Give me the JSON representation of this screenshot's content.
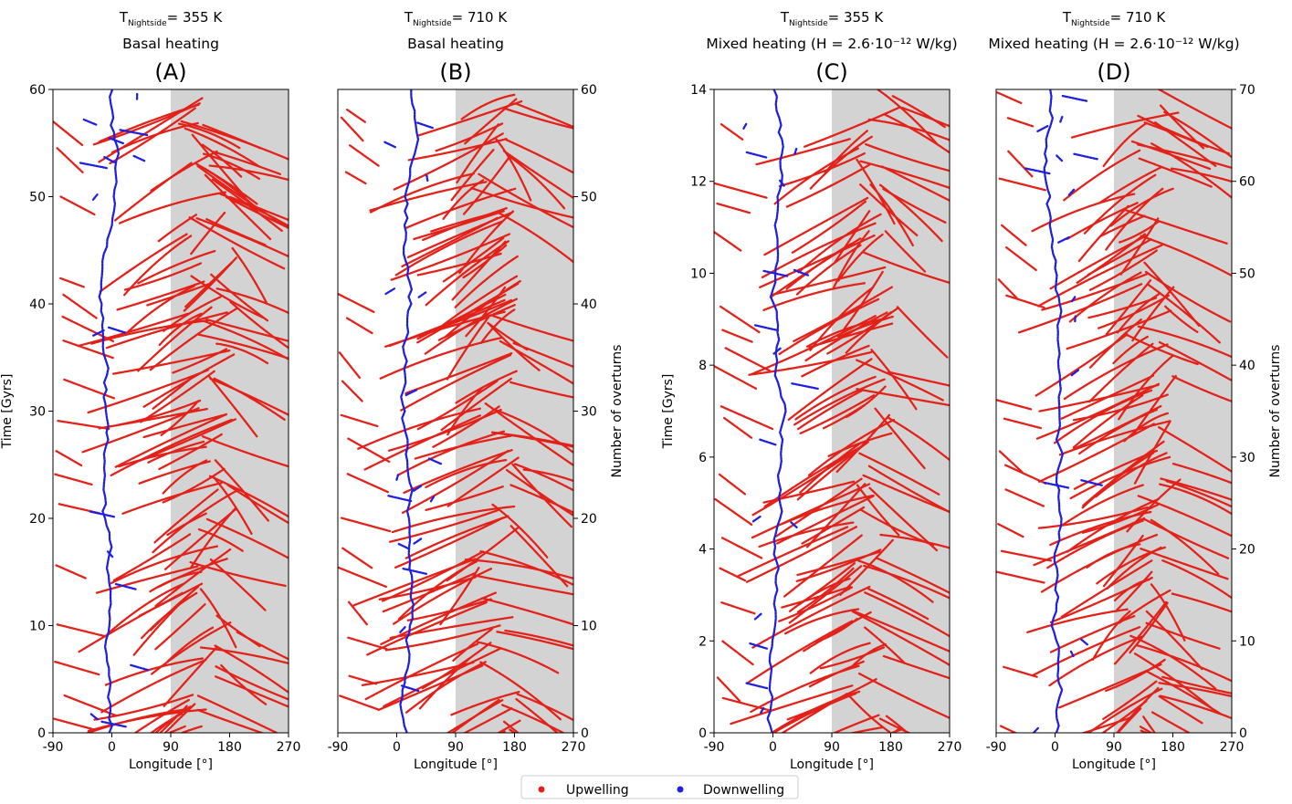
{
  "figure": {
    "legend": {
      "entries": [
        {
          "label": "Upwelling",
          "color": "#e32119"
        },
        {
          "label": "Downwelling",
          "color": "#1f1fe0"
        }
      ],
      "placement": "bottom-center"
    }
  },
  "chart_data": [
    {
      "type": "scatter",
      "panel_letter": "(A)",
      "title_prefix": "T",
      "title_subscript": "Nightside",
      "title_value": "= 355 K",
      "subtitle": "Basal heating",
      "xlabel": "Longitude [°]",
      "ylabel": "Time [Gyrs]",
      "y2label": "",
      "xlim": [
        -90,
        270
      ],
      "ylim": [
        0,
        60
      ],
      "xticks": [
        "-90",
        "0",
        "90",
        "180",
        "270"
      ],
      "yticks": [
        "0",
        "10",
        "20",
        "30",
        "40",
        "50",
        "60"
      ],
      "y2lim": null,
      "y2ticks": [],
      "nightside_shading": [
        90,
        270
      ],
      "downwelling_center_lon": -5,
      "series": [
        {
          "name": "Upwelling",
          "color": "#e32119"
        },
        {
          "name": "Downwelling",
          "color": "#1f1fe0"
        }
      ]
    },
    {
      "type": "scatter",
      "panel_letter": "(B)",
      "title_prefix": "T",
      "title_subscript": "Nightside",
      "title_value": "= 710 K",
      "subtitle": "Basal heating",
      "xlabel": "Longitude [°]",
      "ylabel": "",
      "y2label": "Number of overturns",
      "xlim": [
        -90,
        270
      ],
      "ylim": [
        0,
        60
      ],
      "xticks": [
        "-90",
        "0",
        "90",
        "180",
        "270"
      ],
      "yticks": [],
      "y2lim": [
        0,
        60
      ],
      "y2ticks": [
        "0",
        "10",
        "20",
        "30",
        "40",
        "50",
        "60"
      ],
      "nightside_shading": [
        90,
        270
      ],
      "downwelling_center_lon": 20,
      "series": [
        {
          "name": "Upwelling",
          "color": "#e32119"
        },
        {
          "name": "Downwelling",
          "color": "#1f1fe0"
        }
      ]
    },
    {
      "type": "scatter",
      "panel_letter": "(C)",
      "title_prefix": "T",
      "title_subscript": "Nightside",
      "title_value": "= 355 K",
      "subtitle": "Mixed heating (H = 2.6·10⁻¹² W/kg)",
      "xlabel": "Longitude [°]",
      "ylabel": "Time [Gyrs]",
      "y2label": "",
      "xlim": [
        -90,
        270
      ],
      "ylim": [
        0,
        14
      ],
      "xticks": [
        "-90",
        "0",
        "90",
        "180",
        "270"
      ],
      "yticks": [
        "0",
        "2",
        "4",
        "6",
        "8",
        "10",
        "12",
        "14"
      ],
      "y2lim": null,
      "y2ticks": [],
      "nightside_shading": [
        90,
        270
      ],
      "downwelling_center_lon": 0,
      "series": [
        {
          "name": "Upwelling",
          "color": "#e32119"
        },
        {
          "name": "Downwelling",
          "color": "#1f1fe0"
        }
      ]
    },
    {
      "type": "scatter",
      "panel_letter": "(D)",
      "title_prefix": "T",
      "title_subscript": "Nightside",
      "title_value": "= 710 K",
      "subtitle": "Mixed heating (H = 2.6·10⁻¹² W/kg)",
      "xlabel": "Longitude [°]",
      "ylabel": "",
      "y2label": "Number of overturns",
      "xlim": [
        -90,
        270
      ],
      "ylim": [
        0,
        14
      ],
      "xticks": [
        "-90",
        "0",
        "90",
        "180",
        "270"
      ],
      "yticks": [],
      "y2lim": [
        0,
        70
      ],
      "y2ticks": [
        "0",
        "10",
        "20",
        "30",
        "40",
        "50",
        "60",
        "70"
      ],
      "nightside_shading": [
        90,
        270
      ],
      "downwelling_center_lon": 0,
      "series": [
        {
          "name": "Upwelling",
          "color": "#e32119"
        },
        {
          "name": "Downwelling",
          "color": "#1f1fe0"
        }
      ]
    }
  ]
}
